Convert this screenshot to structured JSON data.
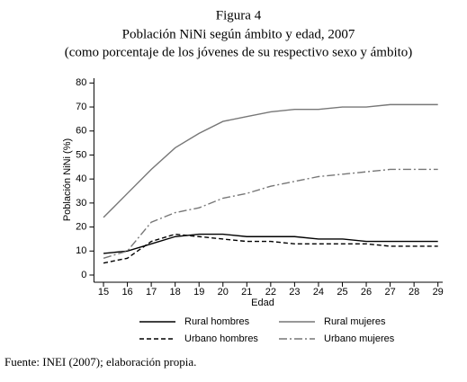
{
  "chart_data": {
    "type": "line",
    "title": "Figura 4",
    "subtitle": "Población NiNi según ámbito y edad, 2007",
    "note": "(como porcentaje de los jóvenes de su respectivo sexo y ámbito)",
    "xlabel": "Edad",
    "ylabel": "Población NiNi (%)",
    "source": "Fuente: INEI (2007); elaboración propia.",
    "x": [
      15,
      16,
      17,
      18,
      19,
      20,
      21,
      22,
      23,
      24,
      25,
      26,
      27,
      28,
      29
    ],
    "xlim": [
      14.6,
      29.2
    ],
    "xticks": [
      15,
      16,
      17,
      18,
      19,
      20,
      21,
      22,
      23,
      24,
      25,
      26,
      27,
      28,
      29
    ],
    "ylim": [
      -3,
      82
    ],
    "yticks": [
      0,
      10,
      20,
      30,
      40,
      50,
      60,
      70,
      80
    ],
    "grid": false,
    "series": [
      {
        "name": "Rural hombres",
        "color": "#000000",
        "style": "solid",
        "values": [
          9,
          10,
          13,
          16,
          17,
          17,
          16,
          16,
          16,
          15,
          15,
          14,
          14,
          14,
          14
        ]
      },
      {
        "name": "Rural mujeres",
        "color": "#777777",
        "style": "solid",
        "values": [
          24,
          34,
          44,
          53,
          59,
          64,
          66,
          68,
          69,
          69,
          70,
          70,
          71,
          71,
          71
        ]
      },
      {
        "name": "Urbano hombres",
        "color": "#000000",
        "style": "dashed",
        "values": [
          5,
          7,
          14,
          17,
          16,
          15,
          14,
          14,
          13,
          13,
          13,
          13,
          12,
          12,
          12
        ]
      },
      {
        "name": "Urbano mujeres",
        "color": "#777777",
        "style": "dashdot",
        "values": [
          7,
          10,
          22,
          26,
          28,
          32,
          34,
          37,
          39,
          41,
          42,
          43,
          44,
          44,
          44
        ]
      }
    ]
  }
}
